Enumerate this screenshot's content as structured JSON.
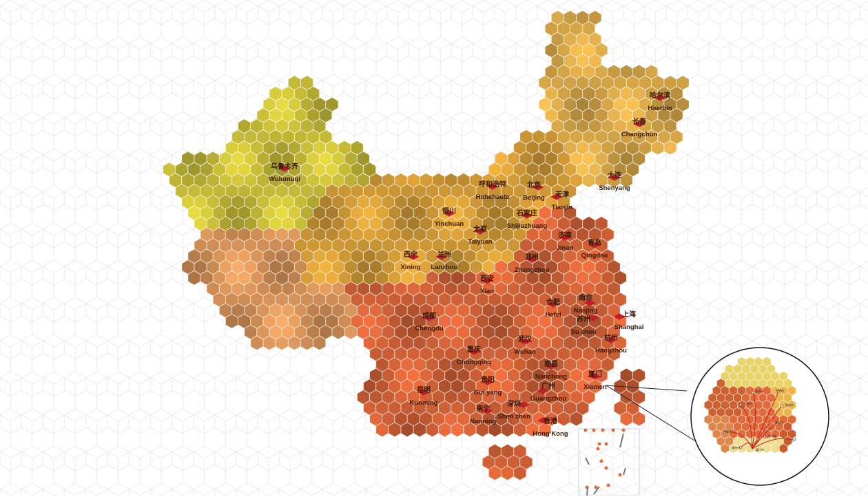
{
  "map": {
    "colors": {
      "northwest": "#d8cc3c",
      "west": "#eba060",
      "north": "#e3a73a",
      "northeast": "#eab64e",
      "south": "#e3693a",
      "marker": "#c0202a",
      "grid": "#e6e6e6"
    },
    "cities": [
      {
        "cn": "乌鲁木齐",
        "en": "Wulumuqi"
      },
      {
        "cn": "哈尔滨",
        "en": "Haerbin"
      },
      {
        "cn": "长春",
        "en": "Changchun"
      },
      {
        "cn": "大连",
        "en": "Shenyang"
      },
      {
        "cn": "呼和浩特",
        "en": "Huhehaote"
      },
      {
        "cn": "北京",
        "en": "Beijing"
      },
      {
        "cn": "天津",
        "en": "Tianjin"
      },
      {
        "cn": "银川",
        "en": "Yinchuan"
      },
      {
        "cn": "石家庄",
        "en": "Shijiazhuang"
      },
      {
        "cn": "太原",
        "en": "Taiyuan"
      },
      {
        "cn": "济南",
        "en": "Jinan"
      },
      {
        "cn": "青岛",
        "en": "Qingdao"
      },
      {
        "cn": "西宁",
        "en": "Xining"
      },
      {
        "cn": "兰州",
        "en": "Lanzhou"
      },
      {
        "cn": "郑州",
        "en": "Zhengzhou"
      },
      {
        "cn": "西安",
        "en": "Xian"
      },
      {
        "cn": "合肥",
        "en": "Hefei"
      },
      {
        "cn": "南京",
        "en": "Nanjing"
      },
      {
        "cn": "苏州",
        "en": "Su zhou"
      },
      {
        "cn": "上海",
        "en": "Shanghai"
      },
      {
        "cn": "成都",
        "en": "Chengdu"
      },
      {
        "cn": "杭州",
        "en": "Hangzhou"
      },
      {
        "cn": "武汉",
        "en": "Wuhan"
      },
      {
        "cn": "重庆",
        "en": "Chongqing"
      },
      {
        "cn": "南昌",
        "en": "Nanchang"
      },
      {
        "cn": "厦门",
        "en": "Xiamen"
      },
      {
        "cn": "贵阳",
        "en": "Gui yang"
      },
      {
        "cn": "昆明",
        "en": "Kunming"
      },
      {
        "cn": "广州",
        "en": "Guangzhou"
      },
      {
        "cn": "深圳",
        "en": "Shen zhen"
      },
      {
        "cn": "南宁",
        "en": "Nanning"
      },
      {
        "cn": "香港",
        "en": "Hong Kong"
      }
    ]
  },
  "inset": {
    "labels": [
      "南平市",
      "宁德市",
      "三明市",
      "福州市",
      "莆田市",
      "龙岩市",
      "泉州市",
      "台湾",
      "漳州市",
      "厦门市"
    ]
  }
}
